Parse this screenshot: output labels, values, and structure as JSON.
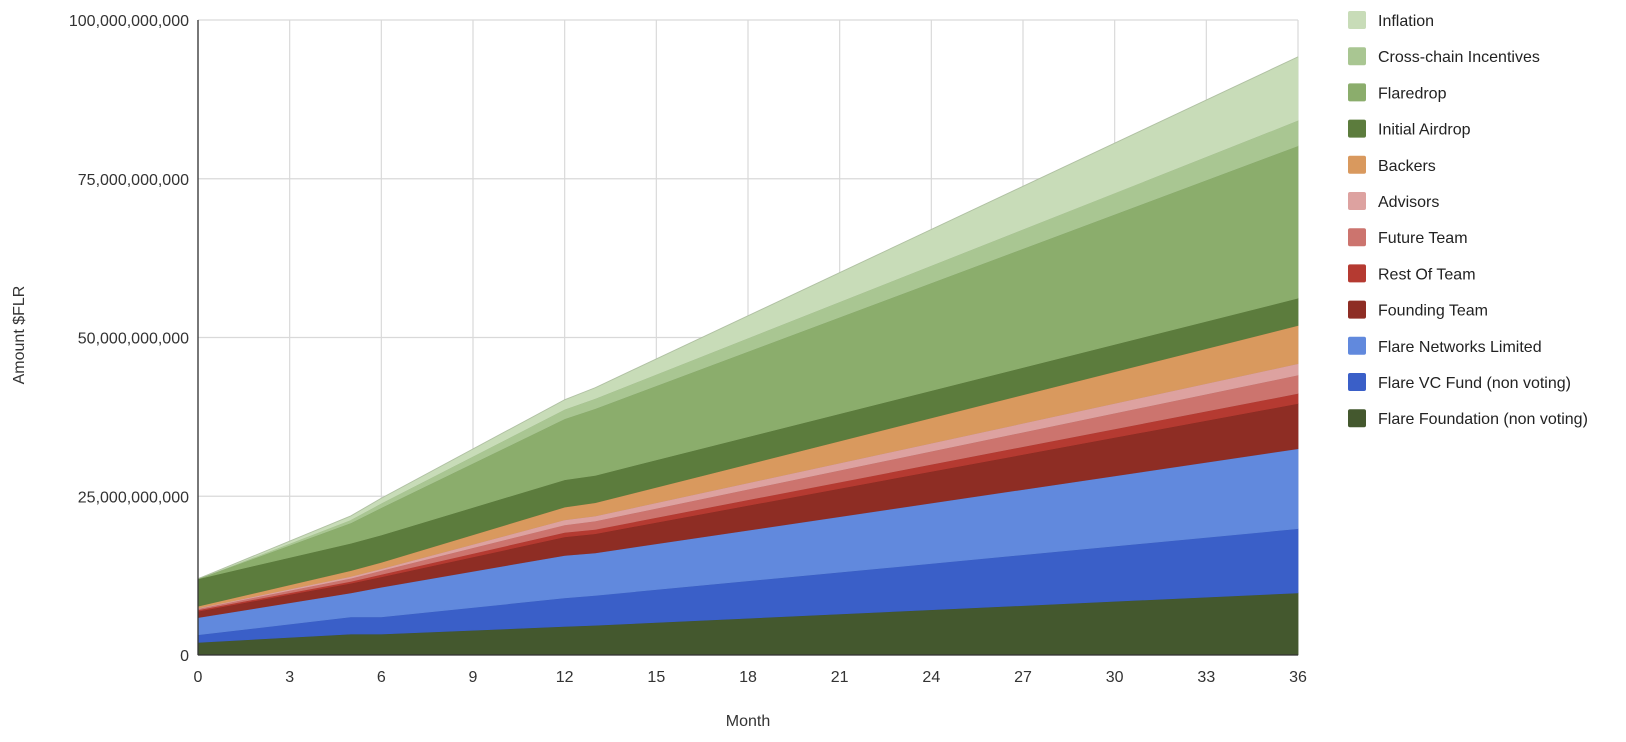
{
  "chart_data": {
    "type": "area",
    "stacked": true,
    "title": "",
    "xlabel": "Month",
    "ylabel": "Amount $FLR",
    "x": [
      0,
      5,
      6,
      12,
      13,
      36
    ],
    "x_ticks": [
      "0",
      "3",
      "6",
      "9",
      "12",
      "15",
      "18",
      "21",
      "24",
      "27",
      "30",
      "33",
      "36"
    ],
    "y_ticks": [
      "0",
      "25,000,000,000",
      "50,000,000,000",
      "75,000,000,000",
      "100,000,000,000"
    ],
    "xlim": [
      0,
      36
    ],
    "ylim": [
      0,
      100000000000
    ],
    "grid": true,
    "legend_position": "right",
    "series": [
      {
        "name": "Flare Foundation (non voting)",
        "color": "#44582e",
        "values": [
          2000000000,
          3300000000,
          3300000000,
          4500000000,
          4700000000,
          9800000000
        ]
      },
      {
        "name": "Flare VC Fund (non voting)",
        "color": "#3a5fc8",
        "values": [
          1200000000,
          2700000000,
          2700000000,
          4500000000,
          4700000000,
          10100000000
        ]
      },
      {
        "name": "Flare Networks Limited",
        "color": "#6189dd",
        "values": [
          2700000000,
          3800000000,
          4700000000,
          6700000000,
          6700000000,
          12600000000
        ]
      },
      {
        "name": "Founding Team",
        "color": "#8e2d24",
        "values": [
          1000000000,
          1500000000,
          1600000000,
          2900000000,
          3000000000,
          7100000000
        ]
      },
      {
        "name": "Rest Of Team",
        "color": "#b53a31",
        "values": [
          200000000,
          300000000,
          400000000,
          700000000,
          700000000,
          1600000000
        ]
      },
      {
        "name": "Future Team",
        "color": "#cc746e",
        "values": [
          200000000,
          500000000,
          600000000,
          1200000000,
          1300000000,
          2900000000
        ]
      },
      {
        "name": "Advisors",
        "color": "#dda2a0",
        "values": [
          100000000,
          300000000,
          300000000,
          800000000,
          800000000,
          1800000000
        ]
      },
      {
        "name": "Backers",
        "color": "#d9995e",
        "values": [
          300000000,
          900000000,
          1000000000,
          2000000000,
          2100000000,
          6000000000
        ]
      },
      {
        "name": "Initial Airdrop",
        "color": "#5c7c3d",
        "values": [
          4300000000,
          4300000000,
          4300000000,
          4300000000,
          4300000000,
          4300000000
        ]
      },
      {
        "name": "Flaredrop",
        "color": "#8bad6c",
        "values": [
          0,
          3200000000,
          4300000000,
          9600000000,
          10500000000,
          24000000000
        ]
      },
      {
        "name": "Cross-chain Incentives",
        "color": "#a9c692",
        "values": [
          0,
          500000000,
          700000000,
          1500000000,
          1600000000,
          4000000000
        ]
      },
      {
        "name": "Inflation",
        "color": "#c8dcb8",
        "values": [
          0,
          600000000,
          800000000,
          1500000000,
          1700000000,
          10000000000
        ]
      }
    ]
  }
}
